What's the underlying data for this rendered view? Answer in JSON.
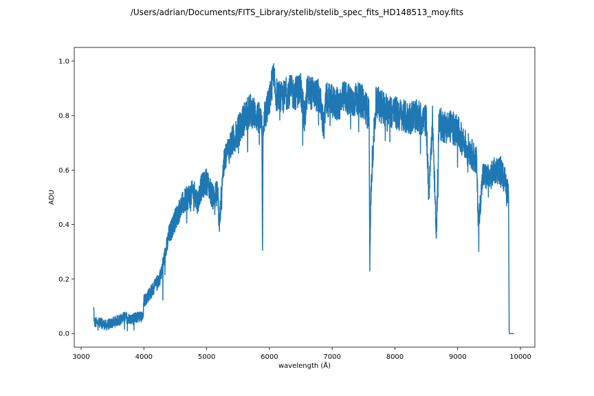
{
  "chart_data": {
    "type": "line",
    "title": "/Users/adrian/Documents/FITS_Library/stelib/stelib_spec_fits_HD148513_moy.fits",
    "xlabel": "wavelength (Å)",
    "ylabel": "ADU",
    "xlim": [
      2890,
      10230
    ],
    "ylim": [
      -0.05,
      1.05
    ],
    "xticks": [
      3000,
      4000,
      5000,
      6000,
      7000,
      8000,
      9000,
      10000
    ],
    "yticks": [
      0.0,
      0.2,
      0.4,
      0.6,
      0.8,
      1.0
    ],
    "xtick_labels": [
      "3000",
      "4000",
      "5000",
      "6000",
      "7000",
      "8000",
      "9000",
      "10000"
    ],
    "ytick_labels": [
      "0.0",
      "0.2",
      "0.4",
      "0.6",
      "0.8",
      "1.0"
    ],
    "grid": false,
    "line_color": "#1f77b4",
    "series": [
      {
        "noise": 0.05,
        "x": [
          3200,
          3210,
          3300,
          3400,
          3500,
          3600,
          3700,
          3800,
          3900,
          3950,
          3990,
          4000,
          4100,
          4200,
          4280,
          4300,
          4350,
          4400,
          4500,
          4600,
          4700,
          4800,
          4860,
          4900,
          5000,
          5100,
          5180,
          5200,
          5250,
          5300,
          5400,
          5500,
          5600,
          5700,
          5800,
          5880,
          5890,
          5900,
          6000,
          6060,
          6100,
          6200,
          6300,
          6400,
          6500,
          6560,
          6600,
          6700,
          6800,
          6870,
          6900,
          7000,
          7100,
          7200,
          7300,
          7400,
          7500,
          7590,
          7600,
          7610,
          7640,
          7700,
          7800,
          7900,
          8000,
          8100,
          8200,
          8300,
          8400,
          8500,
          8540,
          8600,
          8660,
          8700,
          8800,
          8900,
          9000,
          9100,
          9200,
          9300,
          9330,
          9400,
          9500,
          9600,
          9700,
          9750,
          9810,
          9820,
          9900
        ],
        "y": [
          0.09,
          0.04,
          0.04,
          0.03,
          0.04,
          0.05,
          0.06,
          0.05,
          0.06,
          0.06,
          0.07,
          0.12,
          0.15,
          0.18,
          0.22,
          0.25,
          0.3,
          0.36,
          0.42,
          0.47,
          0.5,
          0.52,
          0.48,
          0.53,
          0.56,
          0.5,
          0.52,
          0.38,
          0.58,
          0.65,
          0.7,
          0.74,
          0.79,
          0.82,
          0.8,
          0.77,
          0.3,
          0.78,
          0.85,
          0.95,
          0.88,
          0.86,
          0.89,
          0.88,
          0.9,
          0.78,
          0.89,
          0.88,
          0.87,
          0.75,
          0.86,
          0.85,
          0.84,
          0.87,
          0.85,
          0.86,
          0.85,
          0.8,
          0.22,
          0.45,
          0.64,
          0.85,
          0.83,
          0.82,
          0.81,
          0.8,
          0.79,
          0.8,
          0.79,
          0.78,
          0.5,
          0.78,
          0.35,
          0.77,
          0.76,
          0.76,
          0.74,
          0.7,
          0.67,
          0.63,
          0.4,
          0.58,
          0.57,
          0.6,
          0.6,
          0.56,
          0.52,
          0.0,
          0.0
        ]
      }
    ]
  }
}
